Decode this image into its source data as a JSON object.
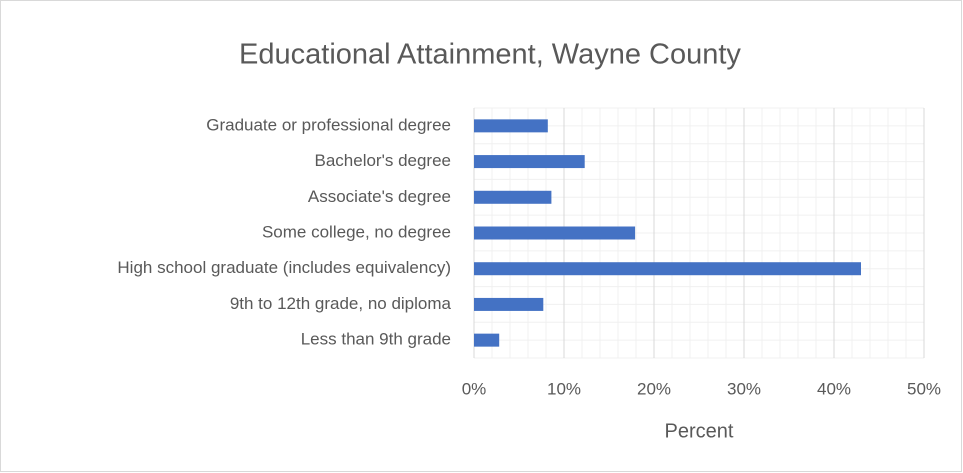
{
  "chart_data": {
    "type": "bar",
    "orientation": "horizontal",
    "title": "Educational Attainment, Wayne County",
    "xlabel": "Percent",
    "categories": [
      "Graduate or professional degree",
      "Bachelor's degree",
      "Associate's degree",
      "Some college, no degree",
      "High school graduate (includes equivalency)",
      "9th to 12th grade, no diploma",
      "Less than 9th grade"
    ],
    "values": [
      8.2,
      12.3,
      8.6,
      17.9,
      43.0,
      7.7,
      2.8
    ],
    "color": "#4472c4",
    "xlim": [
      0,
      50
    ],
    "xticks": [
      {
        "value": 0,
        "label": "0%"
      },
      {
        "value": 10,
        "label": "10%"
      },
      {
        "value": 20,
        "label": "20%"
      },
      {
        "value": 30,
        "label": "30%"
      },
      {
        "value": 40,
        "label": "40%"
      },
      {
        "value": 50,
        "label": "50%"
      }
    ],
    "grid": true
  }
}
